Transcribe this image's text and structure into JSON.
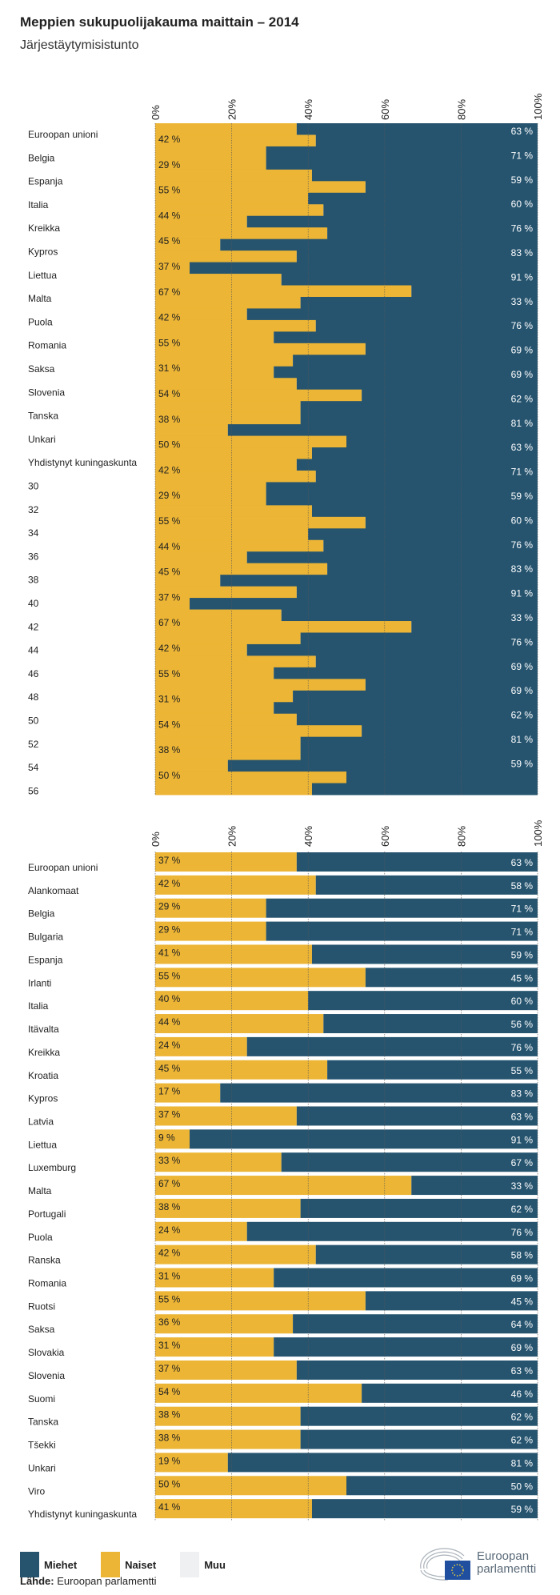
{
  "title": "Meppien sukupuolijakauma maittain – 2014",
  "subtitle": "Järjestäytymisistunto",
  "colors": {
    "men": "#26546f",
    "women": "#ecb535",
    "other": "#eef0f2",
    "grid": "#555555"
  },
  "chart_data": [
    {
      "type": "bar",
      "stacked": true,
      "orientation": "horizontal",
      "note_rendering": "glitched",
      "xlim": [
        0,
        100
      ],
      "x_ticks": [
        "0%",
        "20%",
        "40%",
        "60%",
        "80%",
        "100%"
      ],
      "row_labels": [
        "Euroopan unioni",
        "Belgia",
        "Espanja",
        "Italia",
        "Kreikka",
        "Kypros",
        "Liettua",
        "Malta",
        "Puola",
        "Romania",
        "Saksa",
        "Slovenia",
        "Tanska",
        "Unkari",
        "Yhdistynyt kuningaskunta",
        "30",
        "32",
        "34",
        "36",
        "38",
        "40",
        "42",
        "44",
        "46",
        "48",
        "50",
        "52",
        "54",
        "56"
      ],
      "women_labels": [
        "42 %",
        "29 %",
        "55 %",
        "44 %",
        "45 %",
        "37 %",
        "67 %",
        "42 %",
        "55 %",
        "31 %",
        "54 %",
        "38 %",
        "50 %",
        "42 %",
        "29 %",
        "55 %",
        "44 %",
        "45 %",
        "37 %",
        "67 %",
        "42 %",
        "55 %",
        "31 %",
        "54 %",
        "38 %",
        "50 %"
      ],
      "men_labels": [
        "63 %",
        "71 %",
        "59 %",
        "60 %",
        "76 %",
        "83 %",
        "91 %",
        "33 %",
        "76 %",
        "69 %",
        "69 %",
        "62 %",
        "81 %",
        "63 %",
        "71 %",
        "59 %",
        "60 %",
        "76 %",
        "83 %",
        "91 %",
        "33 %",
        "76 %",
        "69 %",
        "69 %",
        "62 %",
        "81 %",
        "59 %"
      ]
    },
    {
      "type": "bar",
      "stacked": true,
      "orientation": "horizontal",
      "xlim": [
        0,
        100
      ],
      "x_ticks": [
        "0%",
        "20%",
        "40%",
        "60%",
        "80%",
        "100%"
      ],
      "categories": [
        "Euroopan unioni",
        "Alankomaat",
        "Belgia",
        "Bulgaria",
        "Espanja",
        "Irlanti",
        "Italia",
        "Itävalta",
        "Kreikka",
        "Kroatia",
        "Kypros",
        "Latvia",
        "Liettua",
        "Luxemburg",
        "Malta",
        "Portugali",
        "Puola",
        "Ranska",
        "Romania",
        "Ruotsi",
        "Saksa",
        "Slovakia",
        "Slovenia",
        "Suomi",
        "Tanska",
        "Tšekki",
        "Unkari",
        "Viro",
        "Yhdistynyt kuningaskunta"
      ],
      "series": [
        {
          "name": "Naiset",
          "values": [
            37,
            42,
            29,
            29,
            41,
            55,
            40,
            44,
            24,
            45,
            17,
            37,
            9,
            33,
            67,
            38,
            24,
            42,
            31,
            55,
            36,
            31,
            37,
            54,
            38,
            38,
            19,
            50,
            41
          ]
        },
        {
          "name": "Miehet",
          "values": [
            63,
            58,
            71,
            71,
            59,
            45,
            60,
            56,
            76,
            55,
            83,
            63,
            91,
            67,
            33,
            62,
            76,
            58,
            69,
            45,
            64,
            69,
            63,
            46,
            62,
            62,
            81,
            50,
            59
          ]
        }
      ]
    }
  ],
  "legend": [
    {
      "label": "Miehet",
      "color": "#26546f"
    },
    {
      "label": "Naiset",
      "color": "#ecb535"
    },
    {
      "label": "Muu",
      "color": "#eef0f2"
    }
  ],
  "source": {
    "label": "Lähde:",
    "value": "Euroopan parlamentti"
  },
  "logo": {
    "line1": "Euroopan",
    "line2": "parlamentti"
  }
}
